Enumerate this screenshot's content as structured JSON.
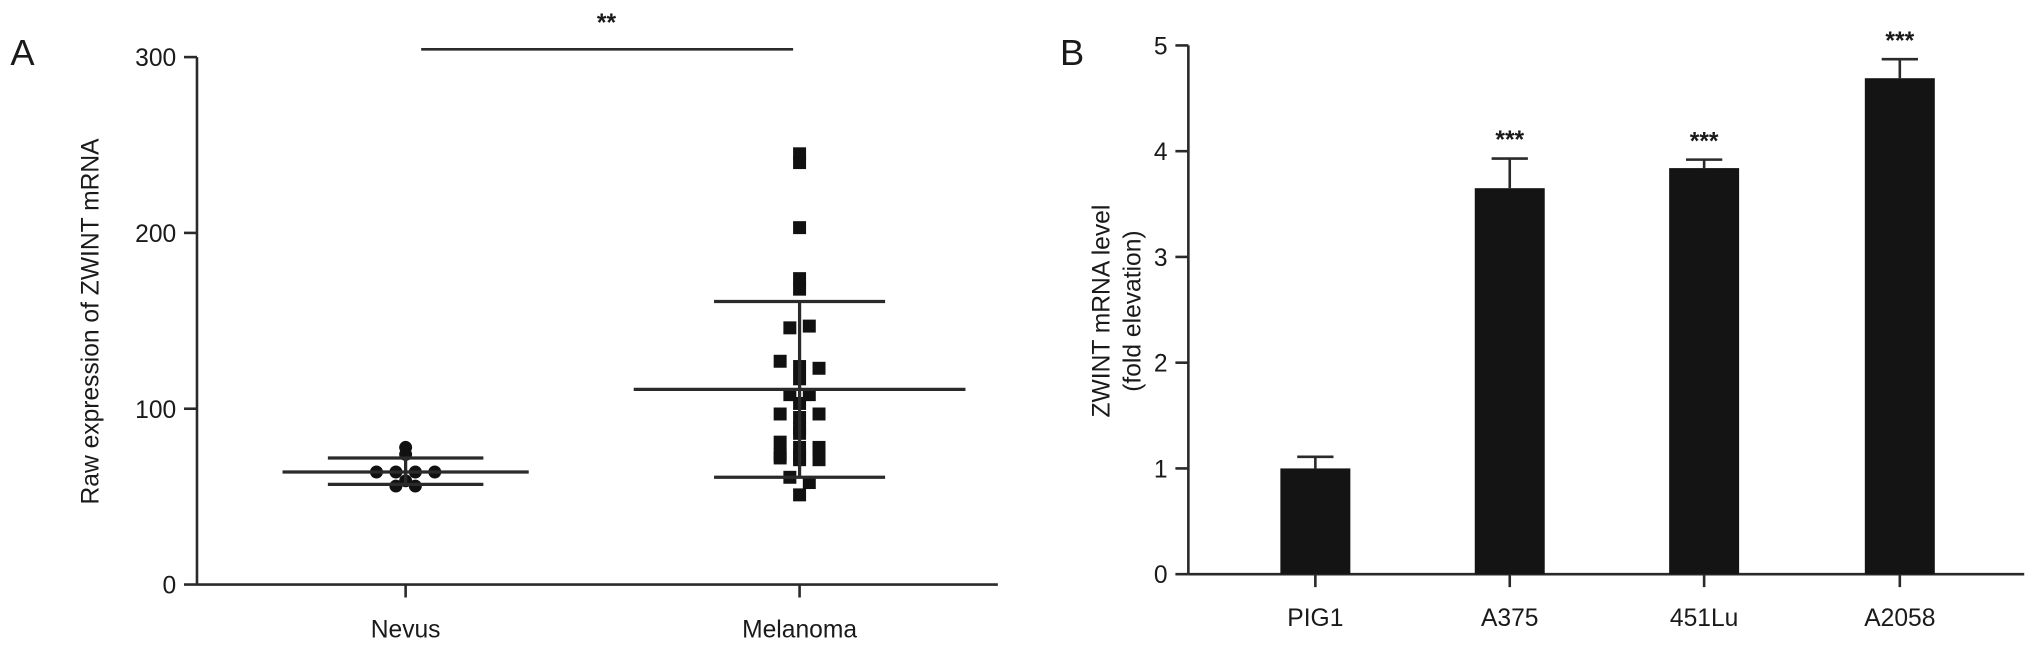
{
  "chart_data": [
    {
      "panel_label": "A",
      "type": "scatter",
      "ylabel": "Raw expression of ZWINT mRNA",
      "xlabel": "",
      "ylim": [
        0,
        300
      ],
      "yticks": [
        "0",
        "100",
        "200",
        "300"
      ],
      "categories": [
        "Nevus",
        "Melanoma"
      ],
      "series": [
        {
          "name": "Nevus",
          "marker": "circle",
          "values": [
            78,
            74,
            64,
            64,
            64,
            64,
            59,
            56,
            56
          ],
          "mean": 64,
          "sd_upper": 72,
          "sd_lower": 57
        },
        {
          "name": "Melanoma",
          "marker": "square",
          "values": [
            245,
            240,
            203,
            174,
            168,
            146,
            147,
            127,
            124,
            123,
            117,
            108,
            108,
            103,
            97,
            95,
            97,
            89,
            86,
            81,
            78,
            74,
            72,
            71,
            71,
            73,
            77,
            78,
            61,
            58,
            51
          ],
          "mean": 111,
          "sd_upper": 161,
          "sd_lower": 61
        }
      ],
      "annotations": [
        {
          "text": "**",
          "between": [
            "Nevus",
            "Melanoma"
          ]
        }
      ]
    },
    {
      "panel_label": "B",
      "type": "bar",
      "ylabel_line1": "ZWINT mRNA level",
      "ylabel_line2": "(fold elevation)",
      "ylim": [
        0,
        5
      ],
      "yticks": [
        "0",
        "1",
        "2",
        "3",
        "4",
        "5"
      ],
      "categories": [
        "PIG1",
        "A375",
        "451Lu",
        "A2058"
      ],
      "values": [
        1.0,
        3.65,
        3.84,
        4.69
      ],
      "errors": [
        0.11,
        0.28,
        0.08,
        0.18
      ],
      "labels": [
        "",
        "***",
        "***",
        "***"
      ],
      "bar_color": "#141414"
    }
  ]
}
